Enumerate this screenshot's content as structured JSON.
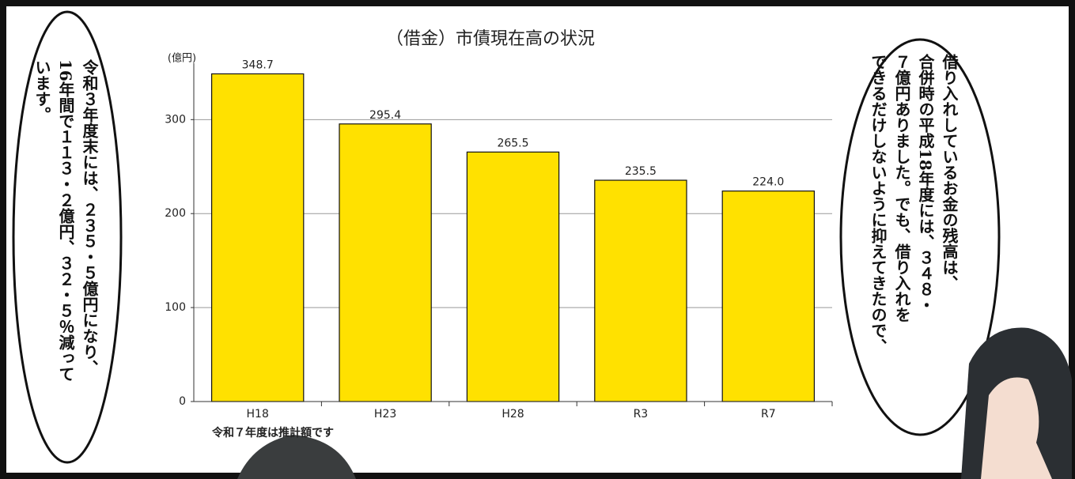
{
  "chart_data": {
    "type": "bar",
    "title": "（借金）市債現在高の状況",
    "y_label": "(億円)",
    "categories": [
      "H18",
      "H23",
      "H28",
      "R3",
      "R7"
    ],
    "values": [
      348.7,
      295.4,
      265.5,
      235.5,
      224.0
    ],
    "value_labels": [
      "348.7",
      "295.4",
      "265.5",
      "235.5",
      "224.0"
    ],
    "color": "#ffe100",
    "ylim": [
      0,
      360
    ],
    "yticks": [
      0,
      100,
      200,
      300
    ],
    "grid": true,
    "note": "令和７年度は推計額です"
  },
  "left_bubble": {
    "lines": [
      "令和３年度末には、２３５・５億円になり、",
      "16年間で１１３・２億円、３２・５％減って",
      "います。"
    ]
  },
  "right_bubble": {
    "lines": [
      "借り入れしているお金の残高は、",
      "合併時の平成18年度には、３４８・",
      "７億円ありました。でも、借り入れを",
      "できるだけしないように抑えてきたので、"
    ]
  }
}
